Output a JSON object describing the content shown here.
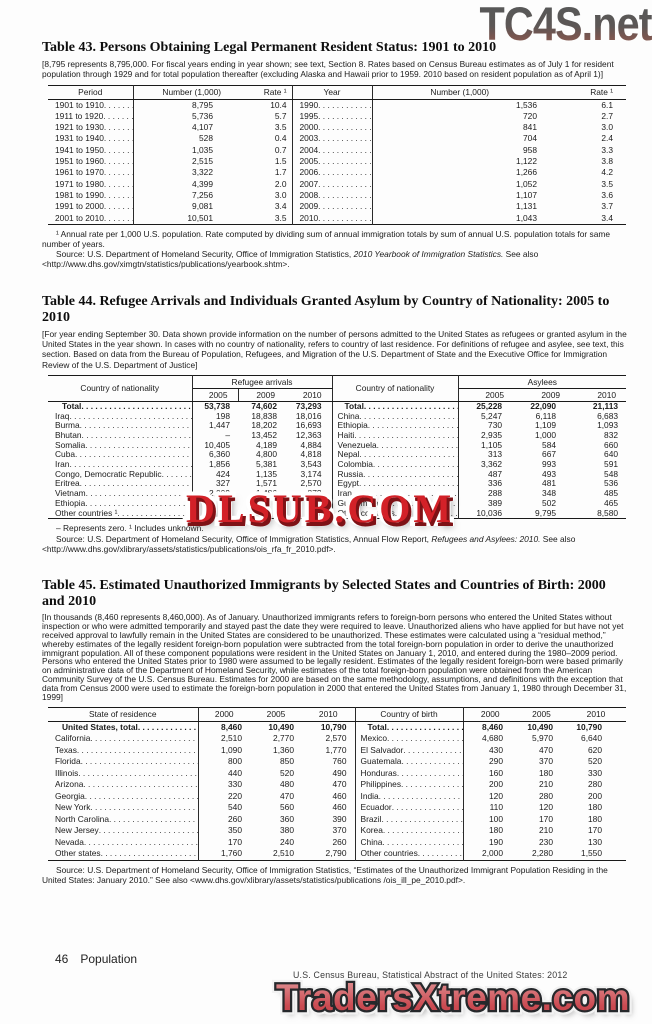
{
  "watermarks": {
    "top": "TC4S.net",
    "middle": "DLSUB.COM",
    "bottom": "TradersXtreme.com"
  },
  "table43": {
    "title": "Table 43. Persons Obtaining Legal Permanent Resident Status: 1901 to 2010",
    "note": "[8,795 represents 8,795,000. For fiscal years ending in year shown; see text, Section 8. Rates based on Census Bureau estimates as of July 1 for resident population through 1929 and for total population thereafter (excluding Alaska and Hawaii prior to 1959. 2010 based on resident population as of April 1)]",
    "headers": [
      "Period",
      "Number (1,000)",
      "Rate ¹",
      "Year",
      "Number (1,000)",
      "Rate ¹"
    ],
    "rows": [
      [
        "1901 to 1910",
        "8,795",
        "10.4",
        "1990",
        "1,536",
        "6.1"
      ],
      [
        "1911 to 1920",
        "5,736",
        "5.7",
        "1995",
        "720",
        "2.7"
      ],
      [
        "1921 to 1930",
        "4,107",
        "3.5",
        "2000",
        "841",
        "3.0"
      ],
      [
        "1931 to 1940",
        "528",
        "0.4",
        "2003",
        "704",
        "2.4"
      ],
      [
        "1941 to 1950",
        "1,035",
        "0.7",
        "2004",
        "958",
        "3.3"
      ],
      [
        "1951 to 1960",
        "2,515",
        "1.5",
        "2005",
        "1,122",
        "3.8"
      ],
      [
        "1961 to 1970",
        "3,322",
        "1.7",
        "2006",
        "1,266",
        "4.2"
      ],
      [
        "1971 to 1980",
        "4,399",
        "2.0",
        "2007",
        "1,052",
        "3.5"
      ],
      [
        "1981 to 1990",
        "7,256",
        "3.0",
        "2008",
        "1,107",
        "3.6"
      ],
      [
        "1991 to 2000",
        "9,081",
        "3.4",
        "2009",
        "1,131",
        "3.7"
      ],
      [
        "2001 to 2010",
        "10,501",
        "3.5",
        "2010",
        "1,043",
        "3.4"
      ]
    ],
    "footnote": "¹ Annual rate per 1,000 U.S. population. Rate computed by dividing sum of annual immigration totals by sum of annual U.S. population totals for same number of years.",
    "source_prefix": "Source: U.S. Department of Homeland Security, Office of Immigration Statistics, ",
    "source_italic": "2010 Yearbook of Immigration Statistics.",
    "source_suffix": " See also <http://www.dhs.gov/ximgtn/statistics/publications/yearbook.shtm>."
  },
  "table44": {
    "title": "Table 44. Refugee Arrivals and Individuals Granted Asylum by Country of Nationality: 2005 to 2010",
    "note": "[For year ending September 30. Data shown provide information on the number of persons admitted to the United States as refugees or granted asylum in the United States in the year shown. In cases with no country of nationality, refers to country of last residence. For definitions of refugee and asylee, see text, this section. Based on data from the Bureau of Population, Refugees, and Migration of the U.S. Department of State and the Executive Office for Immigration Review of the U.S. Department of Justice]",
    "col_group_left": "Country of nationality",
    "col_group_refugees": "Refugee arrivals",
    "col_group_right": "Country of nationality",
    "col_group_asylees": "Asylees",
    "years": [
      "2005",
      "2009",
      "2010"
    ],
    "rows": [
      [
        "Total",
        "53,738",
        "74,602",
        "73,293",
        "Total",
        "25,228",
        "22,090",
        "21,113"
      ],
      [
        "Iraq",
        "198",
        "18,838",
        "18,016",
        "China",
        "5,247",
        "6,118",
        "6,683"
      ],
      [
        "Burma",
        "1,447",
        "18,202",
        "16,693",
        "Ethiopia",
        "730",
        "1,109",
        "1,093"
      ],
      [
        "Bhutan",
        "–",
        "13,452",
        "12,363",
        "Haiti",
        "2,935",
        "1,000",
        "832"
      ],
      [
        "Somalia",
        "10,405",
        "4,189",
        "4,884",
        "Venezuela",
        "1,105",
        "584",
        "660"
      ],
      [
        "Cuba",
        "6,360",
        "4,800",
        "4,818",
        "Nepal",
        "313",
        "667",
        "640"
      ],
      [
        "Iran",
        "1,856",
        "5,381",
        "3,543",
        "Colombia",
        "3,362",
        "993",
        "591"
      ],
      [
        "Congo, Democratic Republic",
        "424",
        "1,135",
        "3,174",
        "Russia",
        "487",
        "493",
        "548"
      ],
      [
        "Eritrea",
        "327",
        "1,571",
        "2,570",
        "Egypt",
        "336",
        "481",
        "536"
      ],
      [
        "Vietnam",
        "2,009",
        "1,486",
        "873",
        "Iran",
        "288",
        "348",
        "485"
      ],
      [
        "Ethiopia",
        "",
        "",
        "",
        "Guatemala",
        "389",
        "502",
        "465"
      ],
      [
        "Other countries ¹",
        "",
        "",
        "",
        "Other countries",
        "10,036",
        "9,795",
        "8,580"
      ]
    ],
    "footnote": "– Represents zero. ¹ Includes unknown.",
    "source_prefix": "Source: U.S. Department of Homeland Security, Office of Immigration Statistics, Annual Flow Report, ",
    "source_italic": "Refugees and Asylees: 2010.",
    "source_suffix": " See also <http://www.dhs.gov/xlibrary/assets/statistics/publications/ois_rfa_fr_2010.pdf>."
  },
  "table45": {
    "title": "Table 45. Estimated Unauthorized Immigrants by Selected States and Countries of Birth: 2000 and 2010",
    "note": "[In thousands (8,460 represents 8,460,000). As of January. Unauthorized immigrants refers to foreign-born persons who entered the United States without inspection or who were admitted temporarily and stayed past the date they were required to leave. Unauthorized aliens who have applied for but have not yet received approval to lawfully remain in the United States are considered to be unauthorized. These estimates were calculated using a “residual method,” whereby estimates of the legally resident foreign-born population were subtracted from the total foreign-born population in order to derive the unauthorized immigrant population. All of these component populations were resident in the United States on January 1, 2010, and entered during the 1980–2009 period. Persons who entered the United States prior to 1980 were assumed to be legally resident. Estimates of the legally resident foreign-born were based primarily on administrative data of the Department of Homeland Security, while estimates of the total foreign-born population were obtained from the American Community Survey of the U.S. Census Bureau. Estimates for 2000 are based on the same methodology, assumptions, and definitions with the exception that data from Census 2000 were used to estimate the foreign-born population in 2000 that entered the United States from January 1, 1980 through December 31, 1999]",
    "headers": [
      "State of residence",
      "2000",
      "2005",
      "2010",
      "Country of birth",
      "2000",
      "2005",
      "2010"
    ],
    "rows": [
      [
        "United States, total",
        "8,460",
        "10,490",
        "10,790",
        "Total",
        "8,460",
        "10,490",
        "10,790"
      ],
      [
        "California",
        "2,510",
        "2,770",
        "2,570",
        "Mexico",
        "4,680",
        "5,970",
        "6,640"
      ],
      [
        "Texas",
        "1,090",
        "1,360",
        "1,770",
        "El Salvador",
        "430",
        "470",
        "620"
      ],
      [
        "Florida",
        "800",
        "850",
        "760",
        "Guatemala",
        "290",
        "370",
        "520"
      ],
      [
        "Illinois",
        "440",
        "520",
        "490",
        "Honduras",
        "160",
        "180",
        "330"
      ],
      [
        "Arizona",
        "330",
        "480",
        "470",
        "Philippines",
        "200",
        "210",
        "280"
      ],
      [
        "Georgia",
        "220",
        "470",
        "460",
        "India",
        "120",
        "280",
        "200"
      ],
      [
        "New York",
        "540",
        "560",
        "460",
        "Ecuador",
        "110",
        "120",
        "180"
      ],
      [
        "North Carolina",
        "260",
        "360",
        "390",
        "Brazil",
        "100",
        "170",
        "180"
      ],
      [
        "New Jersey",
        "350",
        "380",
        "370",
        "Korea",
        "180",
        "210",
        "170"
      ],
      [
        "Nevada",
        "170",
        "240",
        "260",
        "China",
        "190",
        "230",
        "130"
      ],
      [
        "Other states",
        "1,760",
        "2,510",
        "2,790",
        "Other countries",
        "2,000",
        "2,280",
        "1,550"
      ]
    ],
    "source": "Source: U.S. Department of Homeland Security, Office of Immigration Statistics, “Estimates of the Unauthorized Immigrant Population Residing in the United States: January 2010.” See also <www.dhs.gov/xlibrary/assets/statistics/publications /ois_ill_pe_2010.pdf>."
  },
  "footer": {
    "page_number": "46",
    "section": "Population",
    "credit": "U.S. Census Bureau, Statistical Abstract of the United States: 2012"
  }
}
